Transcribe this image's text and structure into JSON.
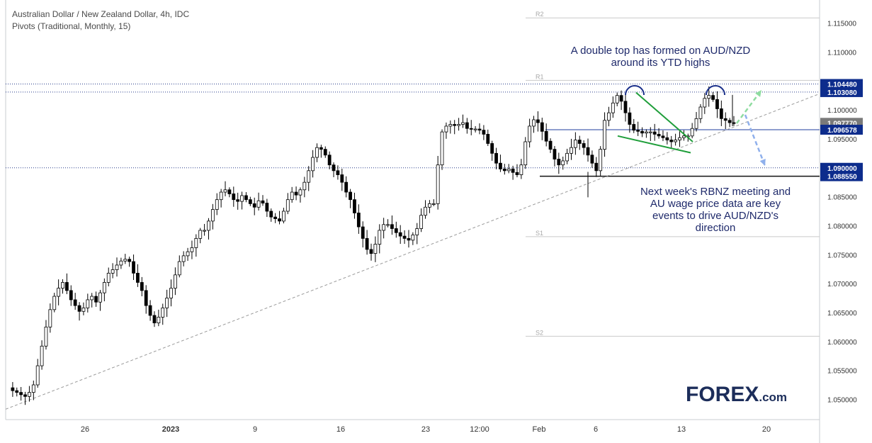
{
  "header": {
    "symbol_line": "Australian Dollar / New Zealand Dollar, 4h, IDC",
    "indicator_line": "Pivots (Traditional, Monthly, 15)"
  },
  "annotations": {
    "top_line1": "A double top has formed on AUD/NZD",
    "top_line2": "around its YTD highs",
    "bottom_line1": "Next week's RBNZ meeting and",
    "bottom_line2": "AU wage price data are key",
    "bottom_line3": "events to drive AUD/NZD's",
    "bottom_line4": "direction"
  },
  "brand": {
    "main": "FOREX",
    "sub": ".com"
  },
  "colors": {
    "up_candle": "#ffffff",
    "down_candle": "#000000",
    "label_blue": "#0d2c8c",
    "label_gray": "#7a7a7a",
    "trend_green": "#1f9e3a",
    "arrow_green": "#8fdca0",
    "arrow_blue": "#8fb0ec",
    "double_top": "#1a2f8a"
  },
  "chart_data": {
    "type": "candlestick",
    "ylim": [
      1.0465,
      1.1185
    ],
    "y_ticks": [
      "1.115000",
      "1.110000",
      "1.105000",
      "1.100000",
      "1.095000",
      "1.090000",
      "1.085000",
      "1.080000",
      "1.075000",
      "1.070000",
      "1.065000",
      "1.060000",
      "1.055000",
      "1.050000"
    ],
    "x_ticks": [
      "26",
      "2023",
      "9",
      "16",
      "23",
      "12:00",
      "Feb",
      "6",
      "13",
      "20"
    ],
    "grid": false,
    "pivots": [
      {
        "name": "R2",
        "value": 1.1159
      },
      {
        "name": "R1",
        "value": 1.1051
      },
      {
        "name": "S1",
        "value": 1.0781
      },
      {
        "name": "S2",
        "value": 1.0609
      }
    ],
    "price_labels": [
      {
        "value": 1.10448,
        "text": "1.104480",
        "style": "blue"
      },
      {
        "value": 1.10308,
        "text": "1.103080",
        "style": "blue"
      },
      {
        "value": 1.09777,
        "text": "1.097770",
        "style": "gray"
      },
      {
        "value": 1.096578,
        "text": "1.096578",
        "style": "blue"
      },
      {
        "value": 1.09,
        "text": "1.090000",
        "style": "blue"
      },
      {
        "value": 1.08855,
        "text": "1.088550",
        "style": "blue"
      }
    ],
    "levels": [
      {
        "value": 1.10448,
        "style": "dotted"
      },
      {
        "value": 1.10308,
        "style": "dotted"
      },
      {
        "value": 1.096578,
        "style": "solid-blue"
      },
      {
        "value": 1.09,
        "style": "dotted"
      },
      {
        "value": 1.08855,
        "style": "solid-black"
      }
    ],
    "close_path": [
      [
        1.052,
        1.0515,
        1.0512,
        1.0508,
        1.0505,
        1.0512,
        1.0525,
        1.0558,
        1.0592,
        1.0625,
        1.0655,
        1.0678,
        1.0692,
        1.0702,
        1.0688,
        1.0672,
        1.0662,
        1.0652,
        1.0658,
        1.0672,
        1.0678,
        1.0668,
        1.0684,
        1.0702,
        1.0718,
        1.0724,
        1.0732,
        1.0739,
        1.0742,
        1.0738,
        1.0718,
        1.0702,
        1.0688,
        1.0662,
        1.0645,
        1.0632,
        1.0642,
        1.0658,
        1.0675,
        1.0692,
        1.0715,
        1.0738,
        1.0748,
        1.0755,
        1.0762,
        1.0778,
        1.0792,
        1.0792,
        1.0808,
        1.0828,
        1.0845,
        1.0858,
        1.0862,
        1.0855,
        1.0845,
        1.0842,
        1.0852,
        1.0845,
        1.0838,
        1.0832,
        1.0843,
        1.0839,
        1.0825,
        1.0815,
        1.0812,
        1.0808,
        1.0825,
        1.0845,
        1.0858,
        1.0853,
        1.0862,
        1.0875,
        1.0895,
        1.0918,
        1.0935,
        1.0932,
        1.0922,
        1.0905,
        1.0895,
        1.0888,
        1.0875,
        1.0858,
        1.0845,
        1.0822,
        1.0798,
        1.0778,
        1.0759,
        1.0752,
        1.0768,
        1.0792,
        1.0802,
        1.0802,
        1.0795,
        1.0788,
        1.0782,
        1.0778,
        1.0775,
        1.0784,
        1.0795,
        1.0818,
        1.0832,
        1.0838,
        1.0838,
        1.0905,
        1.0962,
        1.0972,
        1.0975,
        1.0973,
        1.0975,
        1.0978,
        1.0968,
        1.0967,
        1.0967,
        1.0965,
        1.0958,
        1.0942,
        1.0925,
        1.0908,
        1.0898,
        1.0895,
        1.0898,
        1.0892,
        1.0888,
        1.0905,
        1.0945,
        1.0972,
        1.0983,
        1.0978,
        1.0963,
        1.0946,
        1.0932,
        1.0915,
        1.0905,
        1.0912,
        1.0925,
        1.0935,
        1.0948,
        1.0942,
        1.0935,
        1.0922,
        1.0908,
        1.0895,
        1.0932,
        1.0982,
        1.0995,
        1.1012,
        1.1025,
        1.1015,
        1.0995,
        1.0975,
        1.0965,
        1.0963,
        1.096,
        1.0962,
        1.0962,
        1.0958,
        1.0955,
        1.0952,
        1.0948,
        1.0945,
        1.0948,
        1.0952,
        1.0955,
        1.0955,
        1.0968,
        1.0985,
        1.1005,
        1.102,
        1.1025,
        1.1018,
        1.1002,
        1.0985,
        1.0982,
        1.0978,
        1.0977
      ]
    ]
  }
}
